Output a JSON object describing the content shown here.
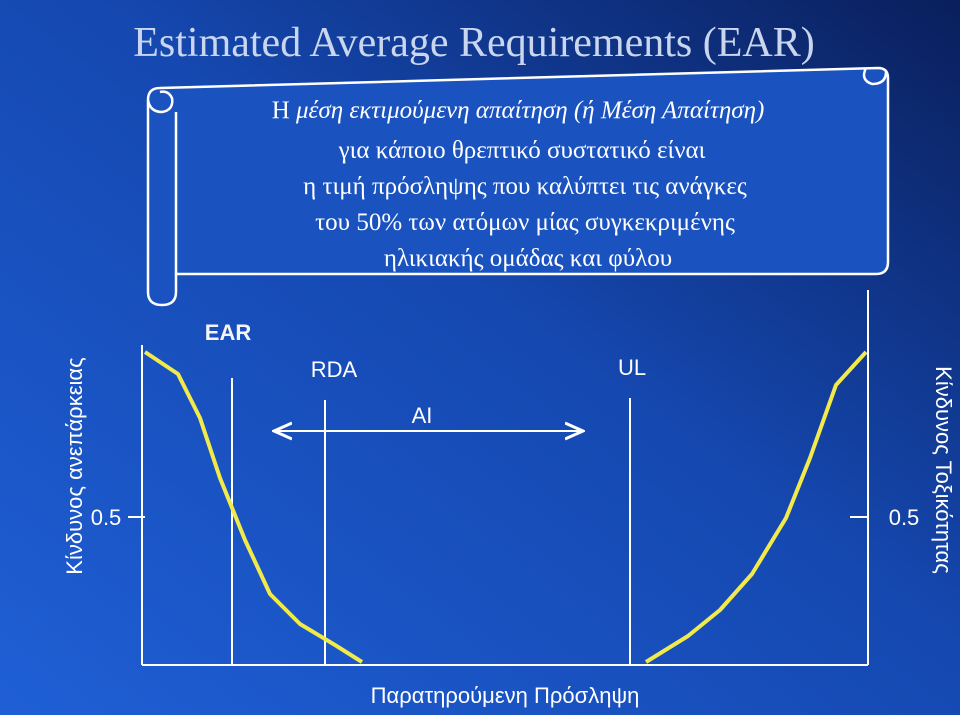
{
  "title": "Estimated Average Requirements (EAR)",
  "definition": {
    "lead": "Η",
    "term": "μέση εκτιμούμενη απαίτηση (ή Μέση Απαίτηση)",
    "lines": [
      "για κάποιο θρεπτικό συστατικό είναι",
      "η τιμή πρόσληψης που καλύπτει τις ανάγκες",
      "του 50% των ατόμων μίας συγκεκριμένης",
      "ηλικιακής ομάδας και φύλου"
    ]
  },
  "diagram": {
    "left_axis_label": "Κίνδυνος ανεπάρκειας",
    "right_axis_label": "Κίνδυνος Τοξικότητας",
    "x_axis_label": "Παρατηρούμενη Πρόσληψη",
    "left_tick": "0.5",
    "right_tick": "0.5",
    "markers": {
      "ear": "EAR",
      "rda": "RDA",
      "ai": "AI",
      "ul": "UL"
    }
  }
}
